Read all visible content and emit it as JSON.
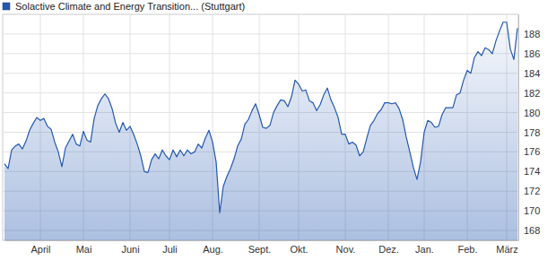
{
  "chart_data": {
    "type": "line",
    "categories": [
      null,
      null,
      null,
      null,
      null,
      null,
      null,
      null,
      null,
      null,
      "April",
      null,
      null,
      null,
      null,
      null,
      null,
      null,
      null,
      null,
      null,
      null,
      "Mai",
      null,
      null,
      null,
      null,
      null,
      null,
      null,
      null,
      null,
      null,
      null,
      null,
      "Juni",
      null,
      null,
      null,
      null,
      null,
      null,
      null,
      null,
      null,
      null,
      "Juli",
      null,
      null,
      null,
      null,
      null,
      null,
      null,
      null,
      null,
      null,
      null,
      "Aug.",
      null,
      null,
      null,
      null,
      null,
      null,
      null,
      null,
      null,
      null,
      null,
      null,
      "Sept.",
      null,
      null,
      null,
      null,
      null,
      null,
      null,
      null,
      null,
      null,
      "Okt.",
      null,
      null,
      null,
      null,
      null,
      null,
      null,
      null,
      null,
      null,
      null,
      null,
      "Nov.",
      null,
      null,
      null,
      null,
      null,
      null,
      null,
      null,
      null,
      null,
      null,
      "Dez.",
      null,
      null,
      null,
      null,
      null,
      null,
      null,
      null,
      null,
      "Jan.",
      null,
      null,
      null,
      null,
      null,
      null,
      null,
      null,
      null,
      null,
      null,
      "Feb.",
      null,
      null,
      null,
      null,
      null,
      null,
      null,
      null,
      null,
      null,
      "März",
      null,
      null,
      null
    ],
    "series": [
      {
        "name": "Solactive Climate and Energy Transition... (Stuttgart)",
        "color": "#2458b0",
        "values": [
          174.8,
          174.3,
          176.2,
          176.6,
          176.8,
          176.3,
          177.1,
          178.2,
          178.9,
          179.5,
          179.2,
          179.4,
          178.6,
          178.3,
          177.0,
          176.0,
          174.5,
          176.4,
          177.1,
          177.8,
          176.8,
          176.6,
          178.1,
          177.2,
          177.0,
          179.4,
          180.7,
          181.4,
          181.9,
          181.4,
          180.4,
          178.9,
          178.0,
          179.0,
          178.2,
          178.6,
          177.8,
          176.8,
          175.6,
          174.0,
          173.9,
          175.2,
          175.8,
          175.3,
          176.2,
          175.6,
          175.2,
          176.2,
          175.5,
          176.2,
          175.6,
          176.2,
          175.8,
          176.0,
          176.8,
          176.4,
          177.4,
          178.2,
          177.0,
          175.0,
          169.8,
          172.5,
          173.5,
          174.3,
          175.3,
          176.6,
          177.3,
          178.8,
          179.3,
          180.2,
          180.9,
          179.8,
          178.5,
          178.4,
          178.7,
          180.0,
          180.7,
          181.3,
          181.2,
          180.6,
          181.6,
          183.3,
          182.9,
          182.2,
          182.3,
          181.2,
          181.0,
          180.2,
          180.8,
          181.8,
          182.5,
          181.3,
          180.5,
          179.5,
          177.8,
          177.8,
          176.8,
          177.0,
          176.7,
          175.6,
          176.0,
          177.4,
          178.7,
          179.2,
          179.9,
          180.3,
          181.0,
          181.0,
          180.9,
          181.0,
          180.4,
          179.3,
          177.5,
          176.0,
          174.4,
          173.2,
          175.0,
          178.0,
          179.2,
          179.0,
          178.5,
          178.6,
          179.8,
          180.5,
          180.5,
          180.5,
          181.8,
          182.0,
          183.3,
          184.3,
          184.0,
          185.6,
          186.2,
          185.8,
          186.6,
          186.4,
          186.0,
          187.3,
          188.3,
          189.2,
          189.2,
          186.5,
          185.4,
          188.6
        ]
      }
    ],
    "ylim": [
      167,
      190
    ],
    "yticks": [
      168,
      170,
      172,
      174,
      176,
      178,
      180,
      182,
      184,
      186,
      188
    ],
    "grid": true,
    "legend": "top-left"
  }
}
